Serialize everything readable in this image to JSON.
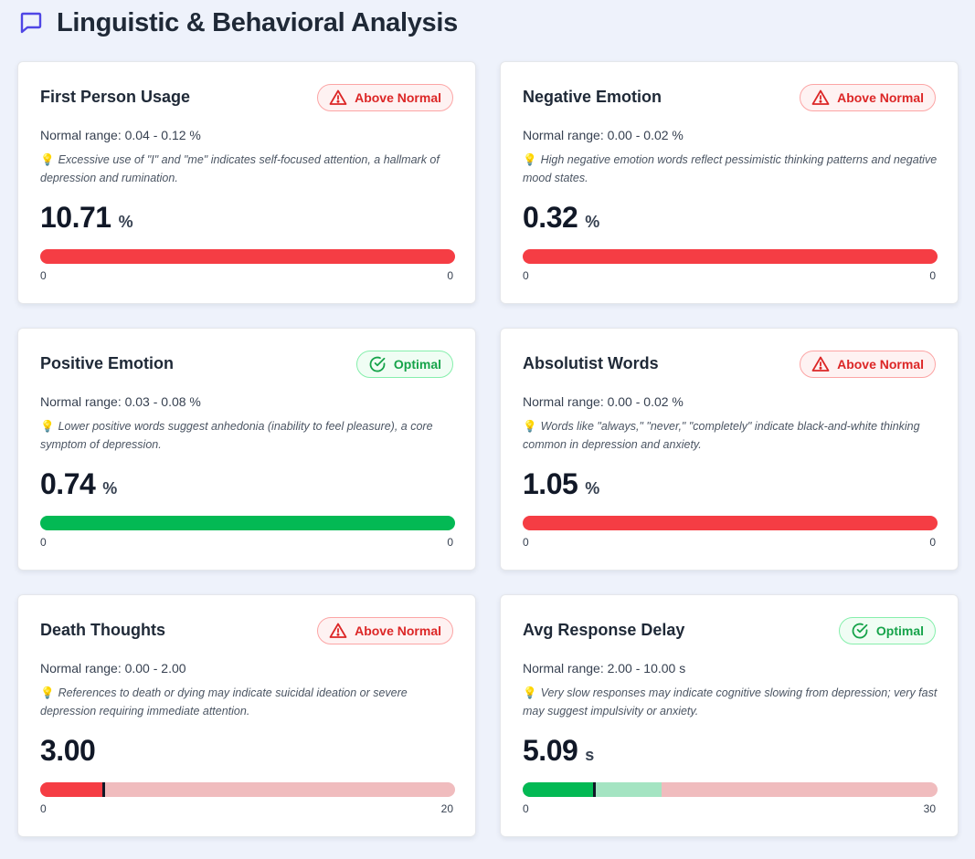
{
  "header": {
    "title": "Linguistic & Behavioral Analysis",
    "icon": "chat-bubble-icon"
  },
  "colors": {
    "accent": "#4f46e5",
    "alert": "#dc2626",
    "optimal": "#16a34a",
    "bar_red": "#f53d44",
    "bar_green": "#03b954"
  },
  "bulb": "💡",
  "metrics": [
    {
      "title": "First Person Usage",
      "badge": "Above Normal",
      "status": "warn",
      "range": "Normal range: 0.04 - 0.12 %",
      "note": "Excessive use of \"I\" and \"me\" indicates self-focused attention, a hallmark of depression and rumination.",
      "value": "10.71",
      "unit": "%",
      "min": "0",
      "max": "0"
    },
    {
      "title": "Negative Emotion",
      "badge": "Above Normal",
      "status": "warn",
      "range": "Normal range: 0.00 - 0.02 %",
      "note": "High negative emotion words reflect pessimistic thinking patterns and negative mood states.",
      "value": "0.32",
      "unit": "%",
      "min": "0",
      "max": "0"
    },
    {
      "title": "Positive Emotion",
      "badge": "Optimal",
      "status": "ok",
      "range": "Normal range: 0.03 - 0.08 %",
      "note": "Lower positive words suggest anhedonia (inability to feel pleasure), a core symptom of depression.",
      "value": "0.74",
      "unit": "%",
      "min": "0",
      "max": "0"
    },
    {
      "title": "Absolutist Words",
      "badge": "Above Normal",
      "status": "warn",
      "range": "Normal range: 0.00 - 0.02 %",
      "note": "Words like \"always,\" \"never,\" \"completely\" indicate black-and-white thinking common in depression and anxiety.",
      "value": "1.05",
      "unit": "%",
      "min": "0",
      "max": "0"
    },
    {
      "title": "Death Thoughts",
      "badge": "Above Normal",
      "status": "warn",
      "range": "Normal range: 0.00 - 2.00",
      "note": "References to death or dying may indicate suicidal ideation or severe depression requiring immediate attention.",
      "value": "3.00",
      "unit": "",
      "min": "0",
      "max": "20"
    },
    {
      "title": "Avg Response Delay",
      "badge": "Optimal",
      "status": "ok",
      "range": "Normal range: 2.00 - 10.00 s",
      "note": "Very slow responses may indicate cognitive slowing from depression; very fast may suggest impulsivity or anxiety.",
      "value": "5.09",
      "unit": "s",
      "min": "0",
      "max": "30"
    }
  ]
}
